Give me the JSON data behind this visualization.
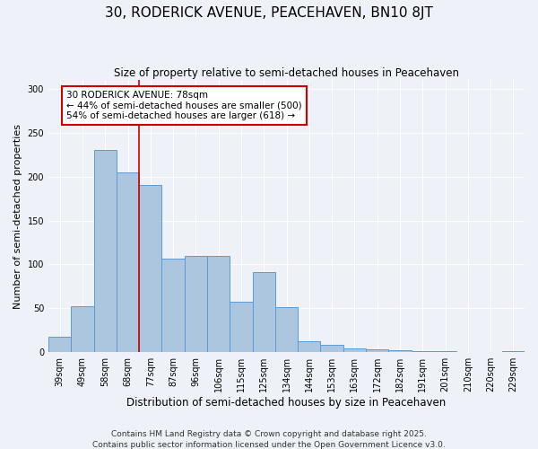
{
  "title": "30, RODERICK AVENUE, PEACEHAVEN, BN10 8JT",
  "subtitle": "Size of property relative to semi-detached houses in Peacehaven",
  "xlabel": "Distribution of semi-detached houses by size in Peacehaven",
  "ylabel": "Number of semi-detached properties",
  "categories": [
    "39sqm",
    "49sqm",
    "58sqm",
    "68sqm",
    "77sqm",
    "87sqm",
    "96sqm",
    "106sqm",
    "115sqm",
    "125sqm",
    "134sqm",
    "144sqm",
    "153sqm",
    "163sqm",
    "172sqm",
    "182sqm",
    "191sqm",
    "201sqm",
    "210sqm",
    "220sqm",
    "229sqm"
  ],
  "values": [
    18,
    52,
    230,
    205,
    190,
    107,
    110,
    110,
    57,
    91,
    51,
    13,
    8,
    4,
    3,
    2,
    1,
    1,
    0,
    0,
    1
  ],
  "bar_color": "#adc6e0",
  "bar_edge_color": "#5b9bd5",
  "annotation_text": "30 RODERICK AVENUE: 78sqm\n← 44% of semi-detached houses are smaller (500)\n54% of semi-detached houses are larger (618) →",
  "annotation_box_color": "#ffffff",
  "annotation_box_edge_color": "#cc0000",
  "vline_color": "#cc0000",
  "ylim": [
    0,
    310
  ],
  "yticks": [
    0,
    50,
    100,
    150,
    200,
    250,
    300
  ],
  "footer_line1": "Contains HM Land Registry data © Crown copyright and database right 2025.",
  "footer_line2": "Contains public sector information licensed under the Open Government Licence v3.0.",
  "background_color": "#eef2f8",
  "grid_color": "#ffffff",
  "title_fontsize": 11,
  "subtitle_fontsize": 8.5,
  "xlabel_fontsize": 8.5,
  "ylabel_fontsize": 8,
  "tick_fontsize": 7,
  "annotation_fontsize": 7.5,
  "footer_fontsize": 6.5
}
